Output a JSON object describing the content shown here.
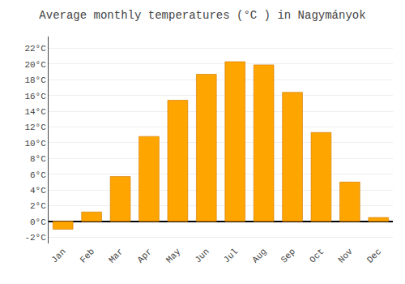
{
  "chart_data": {
    "type": "bar",
    "title": "Average monthly temperatures (°C ) in Nagymányok",
    "categories": [
      "Jan",
      "Feb",
      "Mar",
      "Apr",
      "May",
      "Jun",
      "Jul",
      "Aug",
      "Sep",
      "Oct",
      "Nov",
      "Dec"
    ],
    "values": [
      -1.0,
      1.2,
      5.7,
      10.8,
      15.4,
      18.7,
      20.3,
      19.9,
      16.4,
      11.3,
      5.0,
      0.5
    ],
    "color": "#FFA500",
    "ylim": [
      -2.8,
      23.5
    ],
    "yticks": [
      {
        "value": -2,
        "label": "-2°C"
      },
      {
        "value": 0,
        "label": "0°C"
      },
      {
        "value": 2,
        "label": "2°C"
      },
      {
        "value": 4,
        "label": "4°C"
      },
      {
        "value": 6,
        "label": "6°C"
      },
      {
        "value": 8,
        "label": "8°C"
      },
      {
        "value": 10,
        "label": "10°C"
      },
      {
        "value": 12,
        "label": "12°C"
      },
      {
        "value": 14,
        "label": "14°C"
      },
      {
        "value": 16,
        "label": "16°C"
      },
      {
        "value": 18,
        "label": "18°C"
      },
      {
        "value": 20,
        "label": "20°C"
      },
      {
        "value": 22,
        "label": "22°C"
      }
    ],
    "grid": true
  }
}
